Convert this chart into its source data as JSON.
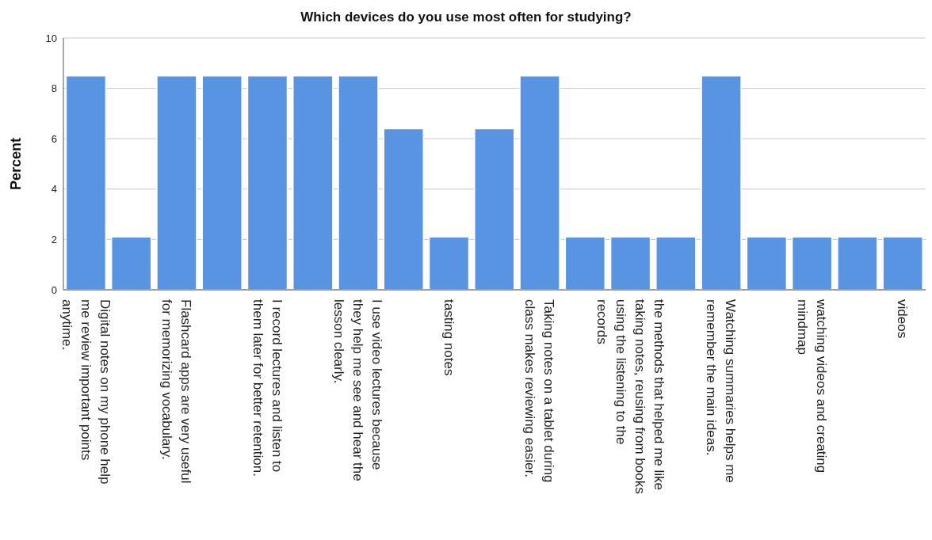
{
  "chart_data": {
    "type": "bar",
    "title": "Which devices do you use most often for studying?",
    "ylabel": "Percent",
    "categories": [
      "Digital notes on my phone help me review important points anytime.",
      null,
      "Flashcard apps are very useful for memorizing vocabulary.",
      null,
      "I record lectures and listen to them later for better retention.",
      null,
      "I use video lectures because they help me see and hear the lesson clearly.",
      null,
      "tasting notes",
      null,
      "Taking notes on a tablet during class makes reviewing easier.",
      null,
      "the methods that helped me like taking notes, reusing from books using the listening to the records",
      null,
      "Watching summaries helps me remember the main ideas.",
      null,
      "watching videos and creating mindmap",
      null,
      "videos"
    ],
    "values": [
      8.5,
      2.1,
      8.5,
      8.5,
      8.5,
      8.5,
      8.5,
      6.4,
      2.1,
      6.4,
      8.5,
      2.1,
      2.1,
      2.1,
      8.5,
      2.1,
      2.1,
      2.1,
      2.1
    ],
    "color": "#5894e2",
    "ylim": [
      0,
      10
    ],
    "yticks": [
      0,
      2,
      4,
      6,
      8,
      10
    ],
    "grid": "y"
  }
}
